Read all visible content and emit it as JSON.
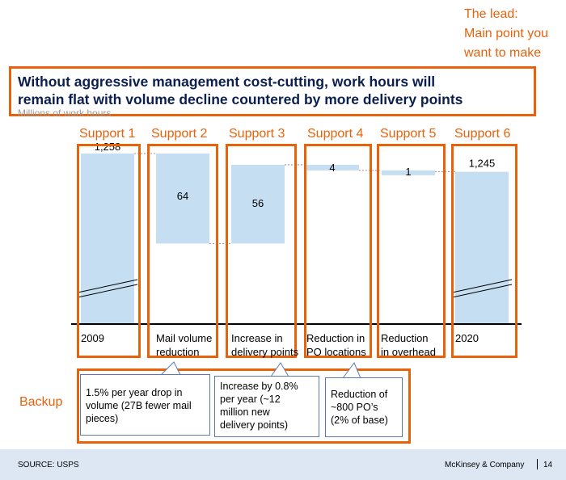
{
  "lead_note": [
    "The lead:",
    "Main point you",
    "want to make"
  ],
  "title_line1": "Without aggressive management cost-cutting, work hours will",
  "title_line2": "remain flat with volume decline countered by more delivery points",
  "subtitle": "Millions of work hours",
  "supports": [
    "Support 1",
    "Support 2",
    "Support 3",
    "Support 4",
    "Support 5",
    "Support 6"
  ],
  "backup_label": "Backup",
  "colors": {
    "accent": "#e8620c",
    "bar": "#c6def1",
    "title": "#0b1f4e",
    "footer": "#dde6f3"
  },
  "chart_data": {
    "type": "bar",
    "subtype": "waterfall",
    "ylabel": "Millions of work hours",
    "categories": [
      "2009",
      "Mail volume reduction",
      "Increase in delivery points",
      "Reduction in PO locations",
      "Reduction in overhead",
      "2020"
    ],
    "category_lines": [
      [
        "2009"
      ],
      [
        "Mail volume",
        "reduction"
      ],
      [
        "Increase in",
        "delivery points"
      ],
      [
        "Reduction in",
        "PO locations"
      ],
      [
        "Reduction",
        "in overhead"
      ],
      [
        "2020"
      ]
    ],
    "values": [
      1258,
      -64,
      56,
      -4,
      -1,
      1245
    ],
    "value_labels": [
      "1,258",
      "64",
      "56",
      "4",
      "1",
      "1,245"
    ],
    "axis_break": true
  },
  "callouts": [
    {
      "lines": [
        "1.5% per year drop in",
        "volume (27B fewer mail",
        "pieces)"
      ]
    },
    {
      "lines": [
        "Increase by 0.8%",
        "per year (~12",
        "million new",
        "delivery points)"
      ]
    },
    {
      "lines": [
        "Reduction of",
        "~800 PO’s",
        "(2% of base)"
      ]
    }
  ],
  "footer": {
    "source": "SOURCE: USPS",
    "brand": "McKinsey & Company",
    "page": "14"
  }
}
